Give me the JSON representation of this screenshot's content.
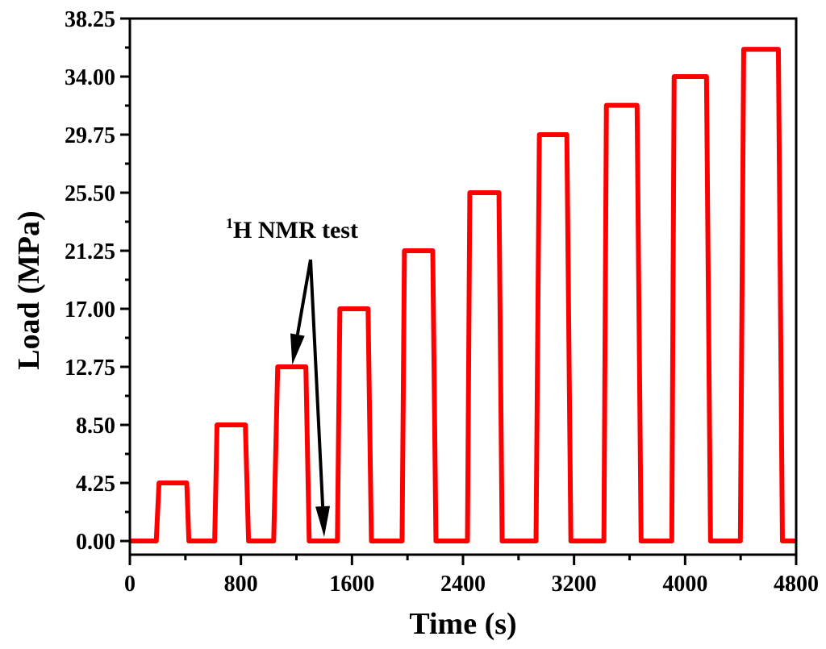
{
  "chart_data": {
    "type": "line",
    "title": "",
    "xlabel": "Time (s)",
    "ylabel": "Load (MPa)",
    "xlim": [
      0,
      4800
    ],
    "ylim": [
      -1,
      38.25
    ],
    "xticks": [
      "0",
      "800",
      "1600",
      "2400",
      "3200",
      "4000",
      "4800"
    ],
    "yticks": [
      "0.00",
      "4.25",
      "8.50",
      "12.75",
      "17.00",
      "21.25",
      "25.50",
      "29.75",
      "34.00",
      "38.25"
    ],
    "grid": false,
    "series": [
      {
        "color": "#ff0000",
        "x": [
          0,
          190,
          210,
          410,
          425,
          611,
          628,
          832,
          855,
          1036,
          1065,
          1268,
          1292,
          1495,
          1513,
          1716,
          1740,
          1961,
          1978,
          2182,
          2205,
          2432,
          2449,
          2659,
          2682,
          2926,
          2950,
          3148,
          3177,
          3415,
          3433,
          3654,
          3683,
          3904,
          3921,
          4154,
          4183,
          4398,
          4422,
          4672,
          4701,
          4800
        ],
        "y": [
          0,
          0,
          4.25,
          4.25,
          0,
          0,
          8.5,
          8.5,
          0,
          0,
          12.75,
          12.75,
          0,
          0,
          17,
          17,
          0,
          0,
          21.25,
          21.25,
          0,
          0,
          25.5,
          25.5,
          0,
          0,
          29.75,
          29.75,
          0,
          0,
          31.9,
          31.9,
          0,
          0,
          34,
          34,
          0,
          0,
          36,
          36,
          0,
          0
        ]
      }
    ],
    "annotation": {
      "superscript": "1",
      "text": "H NMR test",
      "arrow_targets": [
        [
          1170,
          12.9
        ],
        [
          1400,
          0.3
        ]
      ]
    }
  }
}
